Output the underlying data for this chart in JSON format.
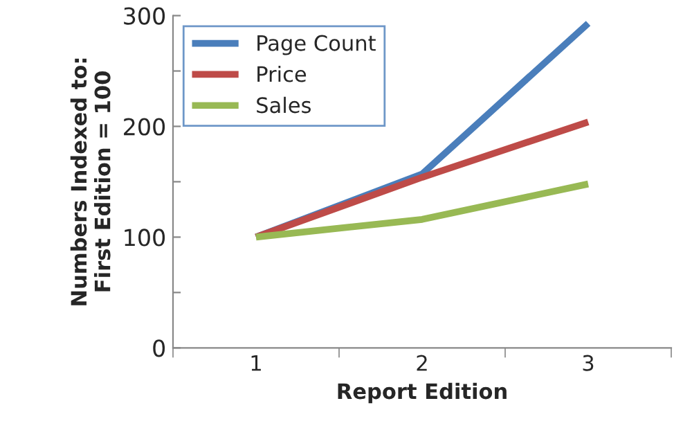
{
  "chart_data": {
    "type": "line",
    "xlabel": "Report Edition",
    "ylabel": "Numbers Indexed to:\nFirst Edition = 100",
    "x": [
      1,
      2,
      3
    ],
    "xlim": [
      0.5,
      3.5
    ],
    "xticks": [
      {
        "value": 0.5,
        "label": null
      },
      1,
      {
        "value": 1.5,
        "label": null
      },
      2,
      {
        "value": 2.5,
        "label": null
      },
      3,
      {
        "value": 3.5,
        "label": null
      }
    ],
    "series": [
      {
        "name": "Page Count",
        "color": "#4a7ebb",
        "values": [
          100,
          157,
          293
        ]
      },
      {
        "name": "Price",
        "color": "#be4b48",
        "values": [
          100,
          154,
          204
        ]
      },
      {
        "name": "Sales",
        "color": "#98b954",
        "values": [
          100,
          116,
          148
        ]
      }
    ],
    "ylim": [
      0,
      300
    ],
    "yticks": [
      0,
      {
        "value": 50,
        "label": null
      },
      100,
      {
        "value": 150,
        "label": null
      },
      200,
      {
        "value": 250,
        "label": null
      },
      300
    ],
    "grid": false,
    "legend": "top left",
    "marker": "none",
    "line_style": "solid"
  }
}
